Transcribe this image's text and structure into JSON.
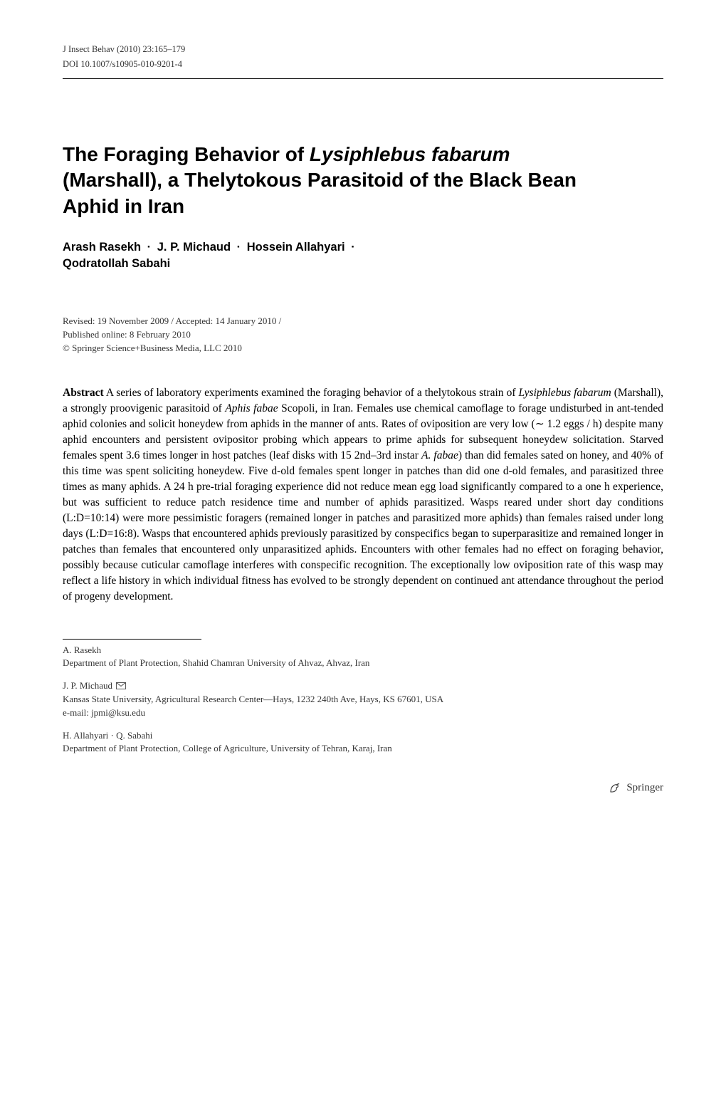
{
  "running_head": {
    "journal": "J Insect Behav (2010) 23:165–179",
    "doi": "DOI 10.1007/s10905-010-9201-4"
  },
  "title": {
    "line1_prefix": "The Foraging Behavior of ",
    "line1_species": "Lysiphlebus fabarum",
    "line2": "(Marshall), a Thelytokous Parasitoid of the Black Bean",
    "line3": "Aphid in Iran"
  },
  "authors": [
    "Arash Rasekh",
    "J. P. Michaud",
    "Hossein Allahyari",
    "Qodratollah Sabahi"
  ],
  "author_separator": "·",
  "history": {
    "revised_accepted": "Revised: 19 November 2009 / Accepted: 14 January 2010 /",
    "published": "Published online: 8 February 2010",
    "copyright": "© Springer Science+Business Media, LLC 2010"
  },
  "abstract": {
    "label": "Abstract",
    "body_parts": [
      {
        "t": "text",
        "v": " A series of laboratory experiments examined the foraging behavior of a thelytokous strain of "
      },
      {
        "t": "i",
        "v": "Lysiphlebus fabarum"
      },
      {
        "t": "text",
        "v": " (Marshall), a strongly proovigenic parasitoid of "
      },
      {
        "t": "i",
        "v": "Aphis fabae"
      },
      {
        "t": "text",
        "v": " Scopoli, in Iran. Females use chemical camoflage to forage undisturbed in ant-tended aphid colonies and solicit honeydew from aphids in the manner of ants. Rates of oviposition are very low (∼ 1.2 eggs / h) despite many aphid encounters and persistent ovipositor probing which appears to prime aphids for subsequent honeydew solicitation. Starved females spent 3.6 times longer in host patches (leaf disks with 15 2nd–3rd instar "
      },
      {
        "t": "i",
        "v": "A. fabae"
      },
      {
        "t": "text",
        "v": ") than did females sated on honey, and 40% of this time was spent soliciting honeydew. Five d-old females spent longer in patches than did one d-old females, and parasitized three times as many aphids. A 24 h pre-trial foraging experience did not reduce mean egg load significantly compared to a one h experience, but was sufficient to reduce patch residence time and number of aphids parasitized. Wasps reared under short day conditions (L:D=10:14) were more pessimistic foragers (remained longer in patches and parasitized more aphids) than females raised under long days (L:D=16:8). Wasps that encountered aphids previously parasitized by conspecifics began to superparasitize and remained longer in patches than females that encountered only unparasitized aphids. Encounters with other females had no effect on foraging behavior, possibly because cuticular camoflage interferes with conspecific recognition. The exceptionally low oviposition rate of this wasp may reflect a life history in which individual fitness has evolved to be strongly dependent on continued ant attendance throughout the period of progeny development."
      }
    ]
  },
  "affiliations": [
    {
      "name": "A. Rasekh",
      "text": "Department of Plant Protection, Shahid Chamran University of Ahvaz, Ahvaz, Iran",
      "corresponding": false
    },
    {
      "name": "J. P. Michaud",
      "text": "Kansas State University, Agricultural Research Center—Hays, 1232 240th Ave, Hays, KS 67601, USA",
      "email": "e-mail: jpmi@ksu.edu",
      "corresponding": true
    },
    {
      "name": "H. Allahyari · Q. Sabahi",
      "text": "Department of Plant Protection, College of Agriculture, University of Tehran, Karaj, Iran",
      "corresponding": false
    }
  ],
  "publisher": {
    "logo_text": "Springer"
  },
  "colors": {
    "text": "#000000",
    "secondary_text": "#333333",
    "rule": "#000000",
    "background": "#ffffff"
  },
  "fonts": {
    "serif": "Georgia, 'Times New Roman', serif",
    "sans": "Helvetica, Arial, sans-serif",
    "title_pt": 28,
    "authors_pt": 16.5,
    "body_pt": 15.5,
    "small_pt": 13,
    "head_pt": 12.5
  }
}
